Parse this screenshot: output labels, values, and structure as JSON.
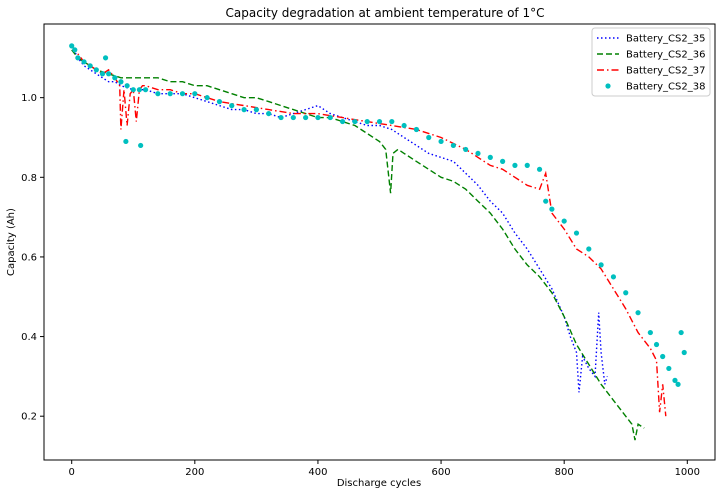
{
  "chart_data": {
    "type": "line",
    "title": "Capacity degradation at ambient temperature of 1°C",
    "xlabel": "Discharge cycles",
    "ylabel": "Capacity (Ah)",
    "xlim": [
      -45,
      1045
    ],
    "ylim": [
      0.09,
      1.185
    ],
    "xticks": [
      0,
      200,
      400,
      600,
      800,
      1000
    ],
    "yticks": [
      0.2,
      0.4,
      0.6,
      0.8,
      1.0
    ],
    "xtick_labels": [
      "0",
      "200",
      "400",
      "600",
      "800",
      "1000"
    ],
    "ytick_labels": [
      "0.2",
      "0.4",
      "0.6",
      "0.8",
      "1.0"
    ],
    "grid": false,
    "legend_position": "top-right",
    "series": [
      {
        "name": "Battery_CS2_35",
        "color": "#0000ff",
        "style": "dotted",
        "x": [
          0,
          10,
          20,
          30,
          40,
          50,
          60,
          70,
          80,
          100,
          120,
          140,
          160,
          180,
          200,
          220,
          240,
          260,
          280,
          300,
          320,
          340,
          360,
          380,
          400,
          420,
          440,
          460,
          480,
          500,
          520,
          540,
          560,
          580,
          600,
          620,
          640,
          660,
          680,
          700,
          720,
          740,
          760,
          780,
          800,
          810,
          820,
          824,
          830,
          840,
          850,
          856,
          860,
          866,
          870
        ],
        "y": [
          1.13,
          1.1,
          1.08,
          1.07,
          1.06,
          1.05,
          1.04,
          1.04,
          1.03,
          1.02,
          1.02,
          1.01,
          1.01,
          1.01,
          1.0,
          0.99,
          0.98,
          0.97,
          0.97,
          0.96,
          0.96,
          0.95,
          0.96,
          0.97,
          0.98,
          0.96,
          0.95,
          0.94,
          0.93,
          0.93,
          0.92,
          0.9,
          0.88,
          0.86,
          0.85,
          0.84,
          0.81,
          0.78,
          0.74,
          0.71,
          0.66,
          0.62,
          0.57,
          0.52,
          0.45,
          0.4,
          0.36,
          0.26,
          0.35,
          0.32,
          0.3,
          0.46,
          0.36,
          0.28,
          0.3
        ]
      },
      {
        "name": "Battery_CS2_36",
        "color": "#008000",
        "style": "dashed",
        "x": [
          0,
          10,
          20,
          30,
          40,
          60,
          80,
          100,
          120,
          140,
          160,
          180,
          200,
          220,
          240,
          260,
          280,
          300,
          320,
          340,
          360,
          380,
          400,
          420,
          440,
          460,
          480,
          500,
          510,
          518,
          522,
          530,
          540,
          560,
          580,
          600,
          620,
          640,
          660,
          680,
          700,
          720,
          740,
          760,
          780,
          800,
          820,
          840,
          860,
          880,
          900,
          910,
          915,
          920,
          930
        ],
        "y": [
          1.12,
          1.1,
          1.09,
          1.08,
          1.07,
          1.06,
          1.05,
          1.05,
          1.05,
          1.05,
          1.04,
          1.04,
          1.03,
          1.03,
          1.02,
          1.01,
          1.0,
          1.0,
          0.99,
          0.98,
          0.97,
          0.96,
          0.95,
          0.95,
          0.94,
          0.93,
          0.91,
          0.89,
          0.87,
          0.76,
          0.86,
          0.87,
          0.86,
          0.84,
          0.82,
          0.8,
          0.79,
          0.77,
          0.74,
          0.71,
          0.67,
          0.62,
          0.58,
          0.55,
          0.51,
          0.45,
          0.38,
          0.33,
          0.28,
          0.24,
          0.2,
          0.18,
          0.14,
          0.18,
          0.17
        ]
      },
      {
        "name": "Battery_CS2_37",
        "color": "#ff0000",
        "style": "dashdot",
        "x": [
          0,
          10,
          20,
          30,
          40,
          50,
          60,
          70,
          78,
          80,
          85,
          90,
          95,
          100,
          105,
          110,
          115,
          120,
          140,
          160,
          180,
          200,
          240,
          280,
          320,
          360,
          400,
          440,
          480,
          520,
          560,
          600,
          640,
          660,
          680,
          700,
          720,
          740,
          760,
          770,
          780,
          800,
          820,
          840,
          860,
          880,
          900,
          920,
          940,
          950,
          955,
          960,
          965
        ],
        "y": [
          1.13,
          1.11,
          1.09,
          1.08,
          1.07,
          1.06,
          1.07,
          1.05,
          1.03,
          0.92,
          1.02,
          0.93,
          1.01,
          1.02,
          0.94,
          1.02,
          1.03,
          1.03,
          1.02,
          1.02,
          1.01,
          1.01,
          0.99,
          0.98,
          0.97,
          0.96,
          0.96,
          0.95,
          0.94,
          0.93,
          0.92,
          0.9,
          0.87,
          0.85,
          0.83,
          0.82,
          0.8,
          0.78,
          0.77,
          0.81,
          0.71,
          0.67,
          0.62,
          0.6,
          0.57,
          0.52,
          0.47,
          0.41,
          0.37,
          0.34,
          0.21,
          0.28,
          0.2
        ]
      },
      {
        "name": "Battery_CS2_38",
        "color": "#00bfbf",
        "style": "points",
        "x": [
          0,
          5,
          10,
          20,
          30,
          40,
          50,
          55,
          60,
          70,
          80,
          90,
          100,
          110,
          120,
          140,
          160,
          180,
          200,
          220,
          240,
          260,
          280,
          300,
          320,
          340,
          360,
          380,
          400,
          420,
          440,
          460,
          480,
          500,
          520,
          540,
          560,
          580,
          600,
          620,
          640,
          660,
          680,
          700,
          720,
          740,
          760,
          770,
          780,
          800,
          820,
          840,
          860,
          880,
          900,
          920,
          940,
          950,
          960,
          970,
          980,
          985,
          990,
          995,
          88,
          112
        ],
        "y": [
          1.13,
          1.12,
          1.1,
          1.09,
          1.08,
          1.07,
          1.06,
          1.1,
          1.06,
          1.05,
          1.04,
          1.03,
          1.02,
          1.02,
          1.02,
          1.01,
          1.01,
          1.01,
          1.01,
          1.0,
          0.99,
          0.98,
          0.97,
          0.97,
          0.96,
          0.95,
          0.95,
          0.95,
          0.95,
          0.95,
          0.94,
          0.94,
          0.94,
          0.94,
          0.94,
          0.93,
          0.92,
          0.9,
          0.89,
          0.88,
          0.87,
          0.86,
          0.85,
          0.84,
          0.83,
          0.83,
          0.82,
          0.74,
          0.72,
          0.69,
          0.66,
          0.62,
          0.58,
          0.55,
          0.51,
          0.46,
          0.41,
          0.38,
          0.35,
          0.32,
          0.29,
          0.28,
          0.41,
          0.36,
          0.89,
          0.88
        ]
      }
    ]
  }
}
